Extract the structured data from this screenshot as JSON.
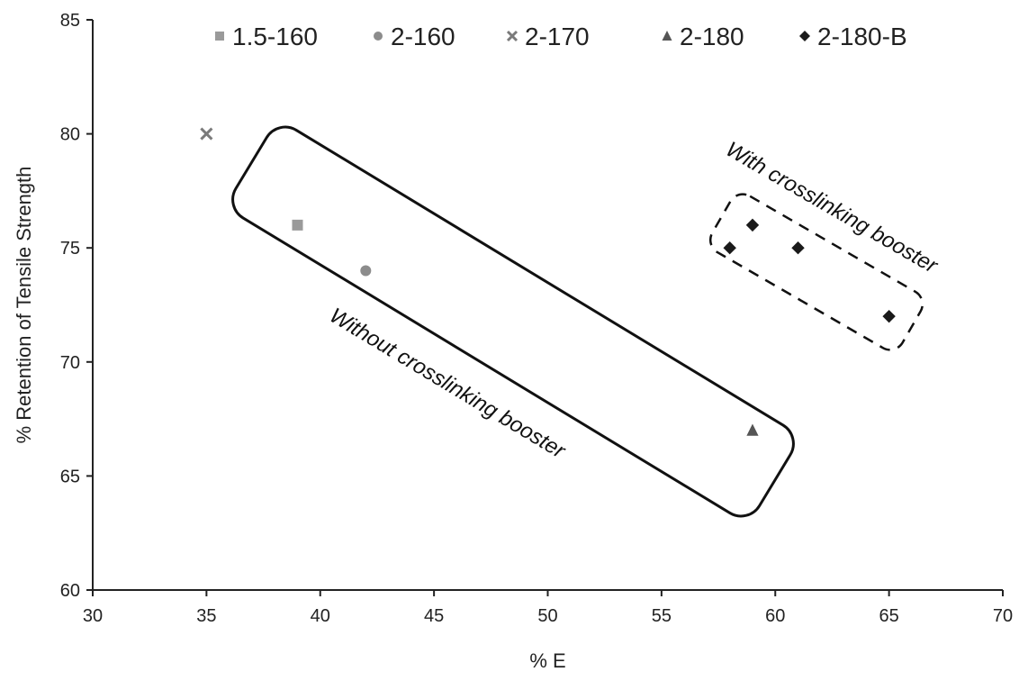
{
  "chart_data": {
    "type": "scatter",
    "title": "",
    "xlabel": "% E",
    "ylabel": "% Retention of Tensile Strength",
    "xlim": [
      30,
      70
    ],
    "ylim": [
      60,
      85
    ],
    "xticks": [
      30,
      35,
      40,
      45,
      50,
      55,
      60,
      65,
      70
    ],
    "yticks": [
      60,
      65,
      70,
      75,
      80,
      85
    ],
    "grid": false,
    "legend_position": "top",
    "series": [
      {
        "name": "1.5-160",
        "marker": "square",
        "color": "#9a9a9a",
        "points": [
          {
            "x": 39,
            "y": 76
          }
        ]
      },
      {
        "name": "2-160",
        "marker": "circle",
        "color": "#8c8c8c",
        "points": [
          {
            "x": 42,
            "y": 74
          }
        ]
      },
      {
        "name": "2-170",
        "marker": "x",
        "color": "#7a7a7a",
        "points": [
          {
            "x": 35,
            "y": 80
          }
        ]
      },
      {
        "name": "2-180",
        "marker": "triangle",
        "color": "#555555",
        "points": [
          {
            "x": 59,
            "y": 67
          }
        ]
      },
      {
        "name": "2-180-B",
        "marker": "diamond",
        "color": "#1a1a1a",
        "points": [
          {
            "x": 58,
            "y": 75
          },
          {
            "x": 59,
            "y": 76
          },
          {
            "x": 61,
            "y": 75
          },
          {
            "x": 65,
            "y": 72
          }
        ]
      }
    ],
    "annotations": [
      {
        "text": "Without crosslinking booster",
        "enclosure": "solid"
      },
      {
        "text": "With crosslinking booster",
        "enclosure": "dashed"
      }
    ]
  }
}
